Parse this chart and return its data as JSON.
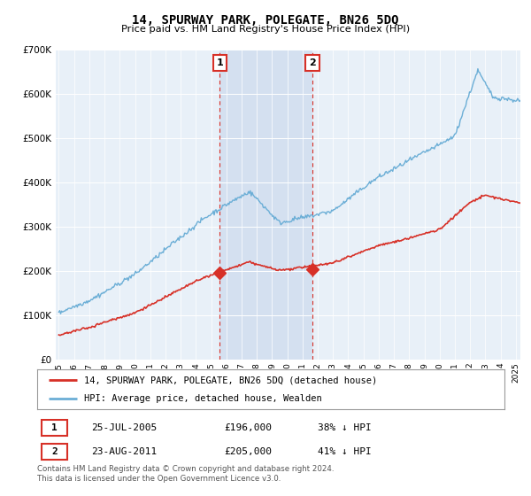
{
  "title": "14, SPURWAY PARK, POLEGATE, BN26 5DQ",
  "subtitle": "Price paid vs. HM Land Registry's House Price Index (HPI)",
  "legend_line1": "14, SPURWAY PARK, POLEGATE, BN26 5DQ (detached house)",
  "legend_line2": "HPI: Average price, detached house, Wealden",
  "footnote": "Contains HM Land Registry data © Crown copyright and database right 2024.\nThis data is licensed under the Open Government Licence v3.0.",
  "sale1_date": "25-JUL-2005",
  "sale1_price": "£196,000",
  "sale1_hpi": "38% ↓ HPI",
  "sale2_date": "23-AUG-2011",
  "sale2_price": "£205,000",
  "sale2_hpi": "41% ↓ HPI",
  "hpi_color": "#6baed6",
  "price_color": "#d73027",
  "background_color": "#ffffff",
  "plot_bg_color": "#ddeeff",
  "shade_color": "#ddeeff",
  "ylim": [
    0,
    700000
  ],
  "yticks": [
    0,
    100000,
    200000,
    300000,
    400000,
    500000,
    600000,
    700000
  ],
  "sale1_year": 2005.57,
  "sale1_value": 196000,
  "sale2_year": 2011.64,
  "sale2_value": 205000,
  "xstart": 1994.8,
  "xend": 2025.3
}
